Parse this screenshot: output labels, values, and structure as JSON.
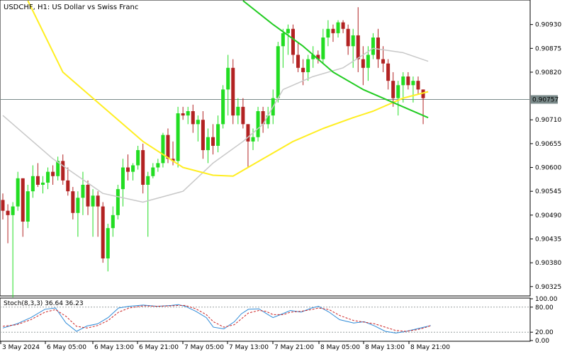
{
  "header": {
    "title": "USDCHF, H1:  US Dollar vs Swiss Franc"
  },
  "stoch": {
    "label": "Stoch(8,3,3) 36.64 36.23"
  },
  "chart_data": [
    {
      "type": "candlestick",
      "symbol": "USDCHF",
      "timeframe": "H1",
      "ylim": [
        0.90305,
        0.90985
      ],
      "y_ticks": [
        "0.90930",
        "0.90875",
        "0.90820",
        "0.90710",
        "0.90655",
        "0.90600",
        "0.90545",
        "0.90490",
        "0.90435",
        "0.90380",
        "0.90325"
      ],
      "current_price": "0.90757",
      "x_ticks": [
        "3 May 2024",
        "6 May 05:00",
        "6 May 13:00",
        "6 May 21:00",
        "7 May 05:00",
        "7 May 13:00",
        "7 May 21:00",
        "8 May 05:00",
        "8 May 13:00",
        "8 May 21:00"
      ],
      "grid": false,
      "colors": {
        "up": "#22dd22",
        "down": "#b22222",
        "ma_fast": "#c8c8c8",
        "ma_mid": "#ffee22",
        "ma_slow": "#22cc22",
        "price_line": "#7a8a8a"
      },
      "candles": [
        [
          0.90525,
          0.9054,
          0.9048,
          0.905
        ],
        [
          0.905,
          0.90515,
          0.90425,
          0.9049
        ],
        [
          0.9049,
          0.9052,
          0.903,
          0.9051
        ],
        [
          0.9051,
          0.9059,
          0.905,
          0.90575
        ],
        [
          0.90575,
          0.90575,
          0.9044,
          0.90475
        ],
        [
          0.90475,
          0.9056,
          0.9046,
          0.90545
        ],
        [
          0.90545,
          0.90605,
          0.9053,
          0.9058
        ],
        [
          0.9058,
          0.9061,
          0.90555,
          0.9056
        ],
        [
          0.9056,
          0.9058,
          0.9054,
          0.90565
        ],
        [
          0.90565,
          0.906,
          0.9055,
          0.9059
        ],
        [
          0.9059,
          0.90605,
          0.9056,
          0.9058
        ],
        [
          0.9058,
          0.90625,
          0.9057,
          0.90615
        ],
        [
          0.90615,
          0.9063,
          0.9056,
          0.9057
        ],
        [
          0.9057,
          0.906,
          0.90535,
          0.90545
        ],
        [
          0.90545,
          0.90555,
          0.9048,
          0.90495
        ],
        [
          0.90495,
          0.90545,
          0.9044,
          0.9053
        ],
        [
          0.9053,
          0.9059,
          0.9049,
          0.9056
        ],
        [
          0.9056,
          0.9057,
          0.9049,
          0.9051
        ],
        [
          0.9051,
          0.9055,
          0.9044,
          0.90535
        ],
        [
          0.90535,
          0.90545,
          0.9044,
          0.9051
        ],
        [
          0.9051,
          0.9052,
          0.9038,
          0.9039
        ],
        [
          0.9039,
          0.9047,
          0.9036,
          0.9046
        ],
        [
          0.9046,
          0.9051,
          0.9044,
          0.9049
        ],
        [
          0.9049,
          0.9056,
          0.9048,
          0.9055
        ],
        [
          0.9055,
          0.9062,
          0.9051,
          0.906
        ],
        [
          0.906,
          0.9063,
          0.9057,
          0.9059
        ],
        [
          0.9059,
          0.9061,
          0.9057,
          0.90605
        ],
        [
          0.90605,
          0.9065,
          0.90595,
          0.9064
        ],
        [
          0.9064,
          0.90655,
          0.9054,
          0.9056
        ],
        [
          0.9056,
          0.9059,
          0.9044,
          0.9058
        ],
        [
          0.9058,
          0.9061,
          0.90575,
          0.906
        ],
        [
          0.906,
          0.9062,
          0.9059,
          0.9061
        ],
        [
          0.9061,
          0.9068,
          0.906,
          0.90675
        ],
        [
          0.90675,
          0.9069,
          0.9061,
          0.9062
        ],
        [
          0.9062,
          0.9066,
          0.90605,
          0.90615
        ],
        [
          0.90615,
          0.9074,
          0.906,
          0.90725
        ],
        [
          0.90725,
          0.9074,
          0.9071,
          0.9072
        ],
        [
          0.9072,
          0.9074,
          0.907,
          0.9073
        ],
        [
          0.9073,
          0.90745,
          0.9068,
          0.907
        ],
        [
          0.907,
          0.9072,
          0.9066,
          0.9071
        ],
        [
          0.9071,
          0.9073,
          0.9062,
          0.9064
        ],
        [
          0.9064,
          0.9069,
          0.9061,
          0.9067
        ],
        [
          0.9067,
          0.907,
          0.9063,
          0.9065
        ],
        [
          0.9065,
          0.9072,
          0.90635,
          0.907
        ],
        [
          0.907,
          0.9079,
          0.9069,
          0.9078
        ],
        [
          0.9078,
          0.9086,
          0.9072,
          0.9083
        ],
        [
          0.9083,
          0.9085,
          0.907,
          0.9072
        ],
        [
          0.9072,
          0.9076,
          0.907,
          0.9074
        ],
        [
          0.9074,
          0.9076,
          0.9069,
          0.907
        ],
        [
          0.907,
          0.907,
          0.906,
          0.9066
        ],
        [
          0.9066,
          0.9069,
          0.9064,
          0.9067
        ],
        [
          0.9067,
          0.9074,
          0.9066,
          0.9073
        ],
        [
          0.9073,
          0.9074,
          0.9068,
          0.907
        ],
        [
          0.907,
          0.9074,
          0.9069,
          0.9072
        ],
        [
          0.9072,
          0.9078,
          0.907,
          0.9076
        ],
        [
          0.9076,
          0.9089,
          0.9075,
          0.9088
        ],
        [
          0.9088,
          0.9092,
          0.9083,
          0.9091
        ],
        [
          0.9091,
          0.9093,
          0.9086,
          0.9092
        ],
        [
          0.9092,
          0.9093,
          0.9084,
          0.9086
        ],
        [
          0.9086,
          0.9089,
          0.9082,
          0.9083
        ],
        [
          0.9083,
          0.9085,
          0.9079,
          0.9082
        ],
        [
          0.9082,
          0.9086,
          0.908,
          0.9085
        ],
        [
          0.9085,
          0.9088,
          0.9083,
          0.9086
        ],
        [
          0.9086,
          0.9087,
          0.9084,
          0.9085
        ],
        [
          0.9085,
          0.9092,
          0.9084,
          0.909
        ],
        [
          0.909,
          0.9094,
          0.9088,
          0.9092
        ],
        [
          0.9092,
          0.9093,
          0.9089,
          0.9091
        ],
        [
          0.9091,
          0.9094,
          0.909,
          0.90935
        ],
        [
          0.90935,
          0.9094,
          0.9091,
          0.9092
        ],
        [
          0.9092,
          0.9093,
          0.9086,
          0.9088
        ],
        [
          0.9088,
          0.9092,
          0.9083,
          0.90905
        ],
        [
          0.90905,
          0.9097,
          0.9082,
          0.9085
        ],
        [
          0.9085,
          0.9088,
          0.9079,
          0.9083
        ],
        [
          0.9083,
          0.9088,
          0.908,
          0.9086
        ],
        [
          0.9086,
          0.9091,
          0.9085,
          0.909
        ],
        [
          0.909,
          0.9092,
          0.9083,
          0.9085
        ],
        [
          0.9085,
          0.9088,
          0.9082,
          0.9084
        ],
        [
          0.9084,
          0.9085,
          0.9078,
          0.908
        ],
        [
          0.908,
          0.9082,
          0.9074,
          0.9076
        ],
        [
          0.9076,
          0.908,
          0.9072,
          0.9079
        ],
        [
          0.9079,
          0.9082,
          0.9075,
          0.9081
        ],
        [
          0.9081,
          0.9082,
          0.9078,
          0.9079
        ],
        [
          0.9079,
          0.9081,
          0.9075,
          0.908
        ],
        [
          0.908,
          0.9081,
          0.9077,
          0.9078
        ],
        [
          0.9078,
          0.9078,
          0.907,
          0.9076
        ]
      ],
      "ma_fast": [
        [
          0,
          0.9072
        ],
        [
          10,
          0.9062
        ],
        [
          20,
          0.9054
        ],
        [
          28,
          0.9052
        ],
        [
          36,
          0.90545
        ],
        [
          42,
          0.9061
        ],
        [
          48,
          0.9066
        ],
        [
          52,
          0.907
        ],
        [
          56,
          0.9078
        ],
        [
          62,
          0.9081
        ],
        [
          68,
          0.9083
        ],
        [
          74,
          0.90875
        ],
        [
          80,
          0.90865
        ],
        [
          85,
          0.90845
        ]
      ],
      "ma_mid": [
        [
          5,
          0.90985
        ],
        [
          12,
          0.9082
        ],
        [
          20,
          0.9074
        ],
        [
          28,
          0.9066
        ],
        [
          36,
          0.906
        ],
        [
          42,
          0.90582
        ],
        [
          46,
          0.9058
        ],
        [
          52,
          0.9062
        ],
        [
          58,
          0.9066
        ],
        [
          64,
          0.9069
        ],
        [
          70,
          0.90715
        ],
        [
          74,
          0.9073
        ],
        [
          80,
          0.9076
        ],
        [
          85,
          0.90775
        ]
      ],
      "ma_slow": [
        [
          48,
          0.90985
        ],
        [
          54,
          0.9093
        ],
        [
          60,
          0.9088
        ],
        [
          66,
          0.9082
        ],
        [
          72,
          0.9078
        ],
        [
          78,
          0.9075
        ],
        [
          85,
          0.90715
        ]
      ]
    },
    {
      "type": "line",
      "indicator": "Stochastic",
      "ylim": [
        0,
        100
      ],
      "y_ticks": [
        "100.00",
        "80.00",
        "20.00",
        "0.00"
      ],
      "levels": [
        80,
        20
      ],
      "series": [
        {
          "name": "Stoch main",
          "color": "#2e8bd8",
          "points": [
            [
              0,
              30
            ],
            [
              4,
              40
            ],
            [
              8,
              55
            ],
            [
              12,
              75
            ],
            [
              15,
              78
            ],
            [
              18,
              42
            ],
            [
              21,
              22
            ],
            [
              24,
              35
            ],
            [
              27,
              40
            ],
            [
              30,
              55
            ],
            [
              33,
              78
            ],
            [
              36,
              82
            ],
            [
              40,
              85
            ],
            [
              44,
              82
            ],
            [
              48,
              84
            ],
            [
              50,
              86
            ],
            [
              52,
              82
            ],
            [
              55,
              70
            ],
            [
              58,
              55
            ],
            [
              60,
              32
            ],
            [
              63,
              28
            ],
            [
              66,
              45
            ],
            [
              68,
              64
            ],
            [
              70,
              75
            ],
            [
              73,
              76
            ],
            [
              75,
              65
            ],
            [
              77,
              55
            ],
            [
              80,
              65
            ],
            [
              82,
              72
            ],
            [
              85,
              68
            ],
            [
              88,
              78
            ],
            [
              90,
              82
            ],
            [
              93,
              68
            ],
            [
              96,
              50
            ],
            [
              100,
              42
            ],
            [
              103,
              45
            ],
            [
              106,
              35
            ],
            [
              109,
              22
            ],
            [
              112,
              18
            ],
            [
              115,
              22
            ],
            [
              118,
              28
            ],
            [
              120,
              32
            ],
            [
              122,
              36
            ]
          ]
        },
        {
          "name": "Stoch signal",
          "color": "#cc2222",
          "points": [
            [
              0,
              34
            ],
            [
              4,
              38
            ],
            [
              8,
              50
            ],
            [
              12,
              68
            ],
            [
              15,
              74
            ],
            [
              18,
              58
            ],
            [
              21,
              34
            ],
            [
              24,
              30
            ],
            [
              27,
              36
            ],
            [
              30,
              48
            ],
            [
              33,
              68
            ],
            [
              36,
              78
            ],
            [
              40,
              83
            ],
            [
              44,
              82
            ],
            [
              48,
              83
            ],
            [
              50,
              84
            ],
            [
              52,
              84
            ],
            [
              55,
              76
            ],
            [
              58,
              62
            ],
            [
              60,
              45
            ],
            [
              63,
              32
            ],
            [
              66,
              38
            ],
            [
              68,
              52
            ],
            [
              70,
              66
            ],
            [
              73,
              72
            ],
            [
              75,
              70
            ],
            [
              77,
              62
            ],
            [
              80,
              62
            ],
            [
              82,
              68
            ],
            [
              85,
              70
            ],
            [
              88,
              74
            ],
            [
              90,
              78
            ],
            [
              93,
              74
            ],
            [
              96,
              60
            ],
            [
              100,
              48
            ],
            [
              103,
              44
            ],
            [
              106,
              40
            ],
            [
              109,
              32
            ],
            [
              112,
              24
            ],
            [
              115,
              22
            ],
            [
              118,
              26
            ],
            [
              120,
              30
            ],
            [
              122,
              36
            ]
          ]
        }
      ]
    }
  ]
}
